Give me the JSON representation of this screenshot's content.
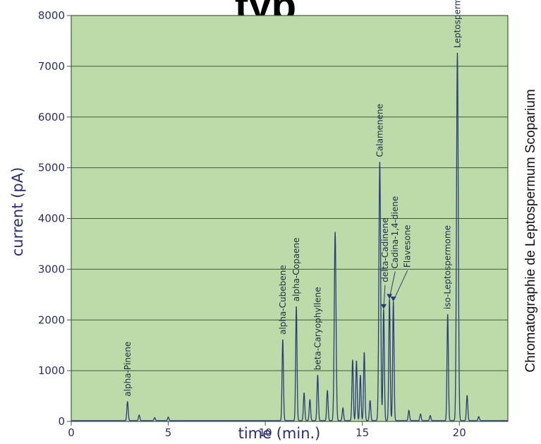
{
  "header": {
    "title_fragment": "typ"
  },
  "side_title": "Chromatographie de Leptospermum Scoparium",
  "colors": {
    "plot_background": "#bcdba8",
    "grid": "#3f5e36",
    "trace": "#2a3c7a",
    "axis_text": "#2c2c72"
  },
  "chart_data": {
    "type": "line",
    "title": "",
    "xlabel": "time (min.)",
    "ylabel": "current (pA)",
    "xlim": [
      0,
      22.5
    ],
    "ylim": [
      0,
      8000
    ],
    "x_ticks": [
      0,
      5,
      10,
      15,
      20
    ],
    "x_tick_labels": [
      "0",
      "5",
      "10",
      "15",
      "20"
    ],
    "y_ticks": [
      0,
      1000,
      2000,
      3000,
      4000,
      5000,
      6000,
      7000,
      8000
    ],
    "y_tick_labels": [
      "0",
      "1000",
      "2000",
      "3000",
      "4000",
      "5000",
      "6000",
      "7000",
      "8000"
    ],
    "grid": "horizontal",
    "series": [
      {
        "peaks": [
          {
            "x": 2.9,
            "y": 380,
            "label": "alpha-Pinene"
          },
          {
            "x": 3.5,
            "y": 110
          },
          {
            "x": 4.3,
            "y": 60
          },
          {
            "x": 5.0,
            "y": 70
          },
          {
            "x": 10.9,
            "y": 1600,
            "label": "alpha-Cubebene"
          },
          {
            "x": 11.6,
            "y": 2250,
            "label": "alpha-Copaene"
          },
          {
            "x": 12.0,
            "y": 550
          },
          {
            "x": 12.3,
            "y": 420
          },
          {
            "x": 12.7,
            "y": 900,
            "label": "beta-Caryophyllene"
          },
          {
            "x": 13.2,
            "y": 600
          },
          {
            "x": 13.6,
            "y": 3720
          },
          {
            "x": 14.0,
            "y": 250
          },
          {
            "x": 14.5,
            "y": 1200
          },
          {
            "x": 14.7,
            "y": 1180
          },
          {
            "x": 14.9,
            "y": 900
          },
          {
            "x": 15.1,
            "y": 1350
          },
          {
            "x": 15.4,
            "y": 400
          },
          {
            "x": 15.9,
            "y": 5100,
            "label": "Calamenene"
          },
          {
            "x": 16.1,
            "y": 2200,
            "label": "delta-Cadinene"
          },
          {
            "x": 16.4,
            "y": 2400,
            "label": "Cadina-1,4-diene"
          },
          {
            "x": 16.6,
            "y": 2350,
            "label": "Flavesone"
          },
          {
            "x": 17.4,
            "y": 200
          },
          {
            "x": 18.0,
            "y": 130
          },
          {
            "x": 18.5,
            "y": 100
          },
          {
            "x": 19.4,
            "y": 2100,
            "label": "iso-Leptospermome"
          },
          {
            "x": 19.9,
            "y": 7250,
            "label": "Leptospermome"
          },
          {
            "x": 20.4,
            "y": 500
          },
          {
            "x": 21.0,
            "y": 80
          }
        ]
      }
    ]
  }
}
